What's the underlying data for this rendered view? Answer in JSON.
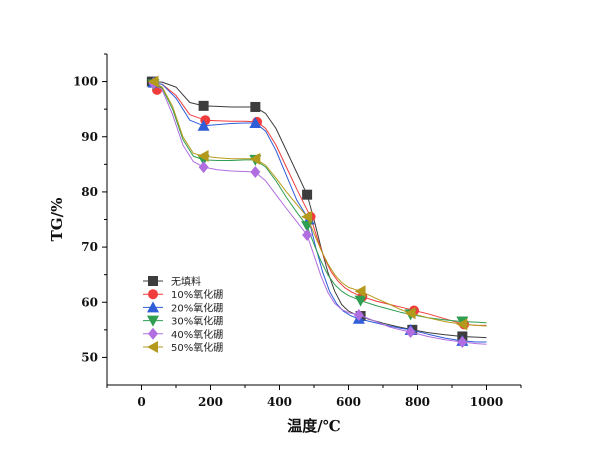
{
  "chart_data": {
    "type": "line",
    "xlabel": "温度/℃",
    "ylabel": "TG/%",
    "xlim": [
      -100,
      1100
    ],
    "ylim": [
      45,
      105
    ],
    "xticks": [
      0,
      200,
      400,
      600,
      800,
      1000
    ],
    "yticks": [
      50,
      60,
      70,
      80,
      90,
      100
    ],
    "grid": false,
    "legend_position": "lower-left",
    "series": [
      {
        "name": "无填料",
        "color": "#3d3d3d",
        "marker": "square",
        "x": [
          30,
          180,
          330,
          480,
          635,
          785,
          930
        ],
        "y": [
          100,
          95.6,
          95.4,
          79.5,
          57.5,
          55.0,
          53.8
        ],
        "curve_x": [
          30,
          60,
          100,
          140,
          180,
          220,
          260,
          300,
          330,
          360,
          390,
          420,
          450,
          480,
          500,
          520,
          540,
          560,
          580,
          600,
          620,
          635,
          660,
          700,
          740,
          785,
          830,
          880,
          930,
          960,
          1000
        ],
        "curve_y": [
          100,
          99.9,
          99.0,
          96.2,
          95.6,
          95.5,
          95.4,
          95.4,
          95.4,
          94.2,
          91.5,
          87.5,
          83.5,
          79.5,
          75.0,
          70.0,
          65.5,
          62.0,
          59.6,
          58.4,
          57.8,
          57.5,
          56.9,
          56.2,
          55.6,
          55.0,
          54.5,
          54.1,
          53.8,
          53.7,
          53.6
        ]
      },
      {
        "name": "10%氧化硼",
        "color": "#f03c3c",
        "marker": "circle",
        "x": [
          45,
          185,
          335,
          490,
          640,
          790,
          935
        ],
        "y": [
          98.5,
          93.0,
          92.7,
          75.5,
          61.0,
          58.5,
          56.0
        ],
        "curve_x": [
          30,
          60,
          100,
          140,
          185,
          220,
          260,
          300,
          335,
          360,
          390,
          420,
          450,
          490,
          510,
          530,
          550,
          570,
          590,
          610,
          640,
          680,
          720,
          760,
          790,
          830,
          880,
          935,
          970,
          1000
        ],
        "curve_y": [
          99.8,
          99.5,
          97.5,
          94.0,
          93.0,
          92.9,
          92.8,
          92.8,
          92.7,
          91.5,
          88.5,
          84.5,
          80.5,
          75.5,
          71.5,
          68.0,
          65.5,
          63.8,
          62.6,
          61.8,
          61.0,
          60.2,
          59.6,
          59.0,
          58.5,
          57.9,
          57.0,
          56.0,
          55.8,
          55.8
        ]
      },
      {
        "name": "20%氧化硼",
        "color": "#2f5ed8",
        "marker": "triangle-up",
        "x": [
          35,
          180,
          330,
          485,
          630,
          780,
          930
        ],
        "y": [
          99.8,
          92.0,
          92.5,
          75.0,
          57.0,
          55.0,
          53.0
        ],
        "curve_x": [
          30,
          60,
          100,
          140,
          180,
          220,
          260,
          300,
          330,
          360,
          390,
          420,
          450,
          485,
          505,
          525,
          545,
          565,
          585,
          605,
          630,
          670,
          710,
          750,
          780,
          830,
          880,
          930,
          970,
          1000
        ],
        "curve_y": [
          99.8,
          99.5,
          97.0,
          93.0,
          92.0,
          92.2,
          92.4,
          92.5,
          92.5,
          91.0,
          87.5,
          83.0,
          78.5,
          75.0,
          70.0,
          65.5,
          62.0,
          59.8,
          58.4,
          57.6,
          57.0,
          56.4,
          55.8,
          55.3,
          55.0,
          54.2,
          53.5,
          53.0,
          52.8,
          52.8
        ]
      },
      {
        "name": "30%氧化硼",
        "color": "#2f9e50",
        "marker": "triangle-down",
        "x": [
          35,
          180,
          330,
          480,
          635,
          780,
          930
        ],
        "y": [
          99.5,
          85.8,
          85.8,
          73.8,
          60.3,
          57.8,
          56.5
        ],
        "curve_x": [
          30,
          60,
          90,
          120,
          150,
          180,
          220,
          260,
          300,
          330,
          360,
          390,
          420,
          450,
          480,
          500,
          520,
          540,
          560,
          580,
          600,
          635,
          680,
          720,
          750,
          780,
          830,
          880,
          930,
          970,
          1000
        ],
        "curve_y": [
          99.8,
          98.8,
          95.0,
          89.5,
          86.5,
          85.8,
          85.7,
          85.7,
          85.8,
          85.8,
          84.5,
          82.0,
          79.0,
          76.3,
          73.8,
          70.5,
          67.5,
          65.0,
          63.2,
          62.0,
          61.2,
          60.3,
          59.4,
          58.7,
          58.2,
          57.8,
          57.2,
          56.8,
          56.5,
          56.4,
          56.3
        ]
      },
      {
        "name": "40%氧化硼",
        "color": "#b06ee0",
        "marker": "diamond",
        "x": [
          35,
          180,
          330,
          480,
          630,
          780,
          930
        ],
        "y": [
          99.7,
          84.5,
          83.6,
          72.2,
          57.7,
          54.6,
          52.8
        ],
        "curve_x": [
          30,
          60,
          90,
          120,
          150,
          180,
          220,
          260,
          300,
          330,
          360,
          390,
          420,
          450,
          480,
          500,
          520,
          540,
          560,
          580,
          600,
          630,
          680,
          720,
          750,
          780,
          830,
          880,
          930,
          970,
          1000
        ],
        "curve_y": [
          99.8,
          98.5,
          94.0,
          88.5,
          85.5,
          84.5,
          84.0,
          83.8,
          83.7,
          83.6,
          82.0,
          79.5,
          77.0,
          74.6,
          72.2,
          68.5,
          64.8,
          61.8,
          59.8,
          58.7,
          58.1,
          57.7,
          56.5,
          55.5,
          55.0,
          54.6,
          53.8,
          53.2,
          52.8,
          52.5,
          52.4
        ]
      },
      {
        "name": "50%氧化硼",
        "color": "#b49a1c",
        "marker": "triangle-left",
        "x": [
          35,
          180,
          330,
          480,
          635,
          780,
          930
        ],
        "y": [
          100,
          86.5,
          86.0,
          75.5,
          62.0,
          58.0,
          56.0
        ],
        "curve_x": [
          30,
          60,
          90,
          120,
          150,
          180,
          220,
          260,
          300,
          330,
          360,
          390,
          420,
          450,
          480,
          500,
          520,
          540,
          560,
          580,
          600,
          635,
          680,
          720,
          750,
          780,
          830,
          880,
          930,
          970,
          1000
        ],
        "curve_y": [
          100,
          99.0,
          95.5,
          90.0,
          87.0,
          86.5,
          86.2,
          86.0,
          86.0,
          86.0,
          84.8,
          82.5,
          80.0,
          77.7,
          75.5,
          72.5,
          69.5,
          67.0,
          65.0,
          63.6,
          62.7,
          62.0,
          60.7,
          59.6,
          58.7,
          58.0,
          57.2,
          56.5,
          56.0,
          55.8,
          55.7
        ]
      }
    ]
  }
}
